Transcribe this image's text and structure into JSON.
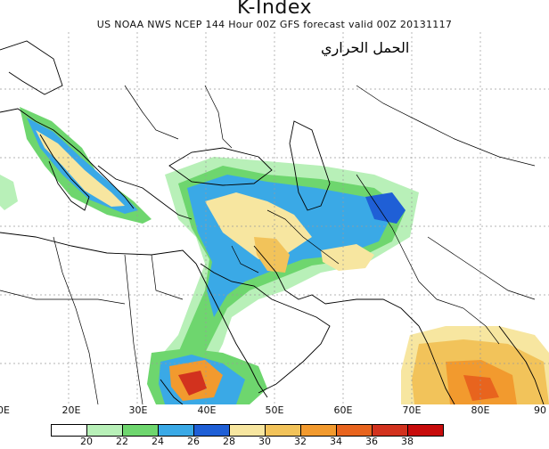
{
  "header": {
    "title": "K-Index",
    "subtitle": "US NOAA NWS NCEP 144 Hour 00Z GFS forecast valid 00Z 20131117"
  },
  "annotation": {
    "arabic_text": "الحمل الحراري"
  },
  "map": {
    "longitude_labels": [
      "0E",
      "20E",
      "30E",
      "40E",
      "50E",
      "60E",
      "70E",
      "80E",
      "90"
    ],
    "grid": true,
    "land_color": "#ffffff",
    "border_color": "#000000",
    "grid_color": "#9a9a9a"
  },
  "colorbar": {
    "colors": [
      "#ffffff",
      "#b8f0b8",
      "#6ed66e",
      "#3aa9e6",
      "#1f5fd6",
      "#f7e6a0",
      "#f2c35a",
      "#f29a2e",
      "#e8641e",
      "#d2321e",
      "#c80c0c"
    ],
    "labels": [
      "20",
      "22",
      "24",
      "26",
      "28",
      "30",
      "32",
      "34",
      "36",
      "38"
    ]
  }
}
